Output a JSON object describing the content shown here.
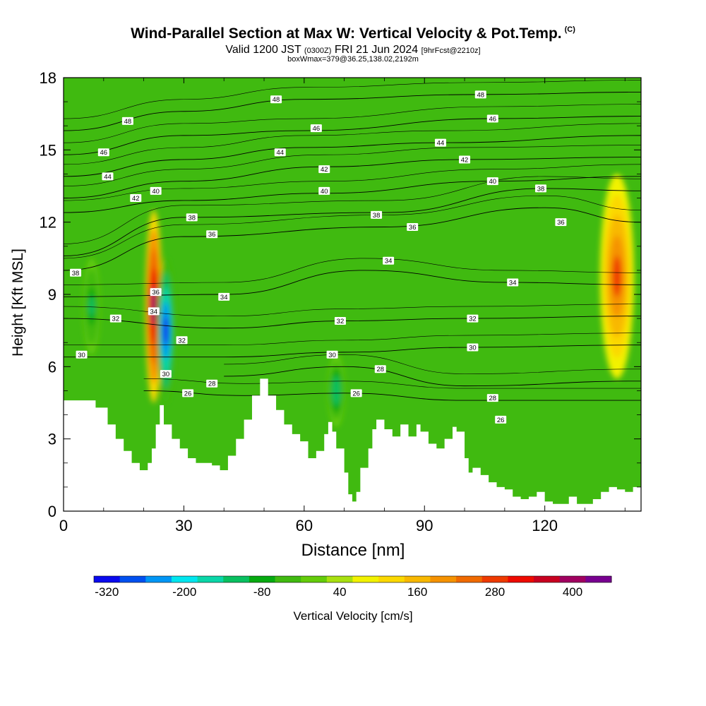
{
  "header": {
    "title": "Wind-Parallel Section at Max W: Vertical Velocity & Pot.Temp.",
    "copyright": "(C)",
    "subtitle_main": "Valid 1200 JST",
    "subtitle_utc": "(0300Z)",
    "subtitle_date": "FRI 21 Jun 2024",
    "subtitle_fcst": "[9hrFcst@2210z]",
    "box_line": "boxWmax=379@36.25,138.02,2192m"
  },
  "chart_data": {
    "type": "heatmap",
    "title": "Wind-Parallel Section at Max W: Vertical Velocity & Pot.Temp.",
    "xlabel": "Distance [nm]",
    "ylabel": "Height [Kft MSL]",
    "xlim": [
      0,
      144
    ],
    "ylim": [
      0,
      18
    ],
    "x_ticks": [
      "0",
      "30",
      "60",
      "90",
      "120"
    ],
    "x_tick_values": [
      0,
      30,
      60,
      90,
      120
    ],
    "y_ticks": [
      "0",
      "3",
      "6",
      "9",
      "12",
      "15",
      "18"
    ],
    "y_tick_values": [
      0,
      3,
      6,
      9,
      12,
      15,
      18
    ],
    "grid": false,
    "colorbar": {
      "label": "Vertical Velocity [cm/s]",
      "tick_labels": [
        "-320",
        "-200",
        "-80",
        "40",
        "160",
        "280",
        "400"
      ],
      "tick_values": [
        -320,
        -200,
        -80,
        40,
        160,
        280,
        400
      ],
      "range": [
        -340,
        460
      ],
      "colors": [
        "#0a0aee",
        "#0050f0",
        "#0096f5",
        "#00e6ef",
        "#0ad6a8",
        "#08c060",
        "#06aa10",
        "#40ba10",
        "#64cc0a",
        "#a8e010",
        "#f2f200",
        "#fbd800",
        "#f8b800",
        "#f59200",
        "#f06a00",
        "#ee3a00",
        "#ee0a00",
        "#c80020",
        "#a00060",
        "#780090"
      ]
    },
    "terrain_profile_kft": [
      [
        0,
        4.6
      ],
      [
        5,
        4.6
      ],
      [
        8,
        4.3
      ],
      [
        11,
        3.6
      ],
      [
        13,
        3.0
      ],
      [
        15,
        2.5
      ],
      [
        17,
        2.0
      ],
      [
        19,
        1.7
      ],
      [
        21,
        2.0
      ],
      [
        22,
        2.6
      ],
      [
        23,
        3.6
      ],
      [
        24,
        4.4
      ],
      [
        25,
        3.6
      ],
      [
        27,
        3.0
      ],
      [
        29,
        2.6
      ],
      [
        31,
        2.2
      ],
      [
        33,
        2.0
      ],
      [
        35,
        2.0
      ],
      [
        37,
        1.9
      ],
      [
        39,
        1.7
      ],
      [
        41,
        2.3
      ],
      [
        43,
        3.0
      ],
      [
        45,
        3.8
      ],
      [
        47,
        4.8
      ],
      [
        49,
        5.5
      ],
      [
        50,
        5.5
      ],
      [
        51,
        4.8
      ],
      [
        53,
        4.2
      ],
      [
        55,
        3.6
      ],
      [
        57,
        3.2
      ],
      [
        59,
        2.9
      ],
      [
        61,
        2.2
      ],
      [
        63,
        2.5
      ],
      [
        65,
        3.2
      ],
      [
        66,
        3.7
      ],
      [
        67,
        3.3
      ],
      [
        68,
        2.6
      ],
      [
        70,
        1.6
      ],
      [
        71,
        0.7
      ],
      [
        72,
        0.4
      ],
      [
        73,
        0.8
      ],
      [
        74,
        1.8
      ],
      [
        76,
        2.6
      ],
      [
        77,
        3.4
      ],
      [
        78,
        3.8
      ],
      [
        80,
        3.4
      ],
      [
        82,
        3.1
      ],
      [
        84,
        3.6
      ],
      [
        86,
        3.1
      ],
      [
        88,
        3.6
      ],
      [
        89,
        3.3
      ],
      [
        91,
        2.8
      ],
      [
        93,
        2.6
      ],
      [
        95,
        3.0
      ],
      [
        97,
        3.5
      ],
      [
        98,
        3.3
      ],
      [
        100,
        2.2
      ],
      [
        101,
        1.6
      ],
      [
        102,
        1.8
      ],
      [
        104,
        1.5
      ],
      [
        106,
        1.2
      ],
      [
        108,
        1.0
      ],
      [
        110,
        0.9
      ],
      [
        112,
        0.6
      ],
      [
        114,
        0.5
      ],
      [
        116,
        0.6
      ],
      [
        118,
        0.8
      ],
      [
        120,
        0.4
      ],
      [
        122,
        0.3
      ],
      [
        124,
        0.3
      ],
      [
        126,
        0.6
      ],
      [
        128,
        0.3
      ],
      [
        130,
        0.3
      ],
      [
        132,
        0.5
      ],
      [
        134,
        0.8
      ],
      [
        136,
        1.0
      ],
      [
        138,
        0.9
      ],
      [
        140,
        0.8
      ],
      [
        142,
        1.0
      ],
      [
        144,
        1.0
      ]
    ],
    "vertical_velocity_features_cms": [
      {
        "x": 22.5,
        "ymin": 4.5,
        "ymax": 12.5,
        "peak": 400
      },
      {
        "x": 25.5,
        "ymin": 4.5,
        "ymax": 10.5,
        "peak": -320
      },
      {
        "x": 138,
        "ymin": 5.5,
        "ymax": 14.0,
        "peak": 260
      },
      {
        "x": 7,
        "ymin": 6.5,
        "ymax": 10.5,
        "peak": -120
      },
      {
        "x": 68,
        "ymin": 3.5,
        "ymax": 6.5,
        "peak": -140
      }
    ],
    "theta_contours": [
      {
        "label": "26",
        "points": [
          [
            20,
            5.0
          ],
          [
            45,
            4.8
          ],
          [
            70,
            4.9
          ],
          [
            100,
            4.6
          ],
          [
            144,
            4.6
          ]
        ]
      },
      {
        "label": "28",
        "points": [
          [
            40,
            5.6
          ],
          [
            70,
            6.0
          ],
          [
            100,
            5.2
          ],
          [
            144,
            5.4
          ]
        ]
      },
      {
        "label": "30",
        "points": [
          [
            0,
            6.4
          ],
          [
            40,
            6.4
          ],
          [
            70,
            6.6
          ],
          [
            100,
            6.8
          ],
          [
            144,
            6.9
          ]
        ]
      },
      {
        "label": "32",
        "points": [
          [
            0,
            8.0
          ],
          [
            40,
            7.6
          ],
          [
            70,
            7.9
          ],
          [
            100,
            8.0
          ],
          [
            144,
            8.1
          ]
        ]
      },
      {
        "label": "34",
        "points": [
          [
            0,
            8.9
          ],
          [
            40,
            9.0
          ],
          [
            75,
            10.0
          ],
          [
            110,
            9.5
          ],
          [
            144,
            9.4
          ]
        ]
      },
      {
        "label": "36",
        "points": [
          [
            0,
            10.0
          ],
          [
            30,
            11.4
          ],
          [
            80,
            11.8
          ],
          [
            120,
            12.6
          ],
          [
            144,
            12.0
          ]
        ]
      },
      {
        "label": "38",
        "points": [
          [
            0,
            10.6
          ],
          [
            30,
            12.2
          ],
          [
            80,
            12.4
          ],
          [
            120,
            13.4
          ],
          [
            144,
            13.3
          ]
        ]
      },
      {
        "label": "40",
        "points": [
          [
            0,
            12.4
          ],
          [
            30,
            12.9
          ],
          [
            65,
            13.2
          ],
          [
            107,
            13.7
          ],
          [
            144,
            13.9
          ]
        ]
      },
      {
        "label": "42",
        "points": [
          [
            0,
            13.0
          ],
          [
            30,
            13.7
          ],
          [
            65,
            14.3
          ],
          [
            100,
            14.6
          ],
          [
            144,
            14.7
          ]
        ]
      },
      {
        "label": "44",
        "points": [
          [
            0,
            13.9
          ],
          [
            30,
            14.6
          ],
          [
            60,
            15.1
          ],
          [
            95,
            15.3
          ],
          [
            144,
            15.6
          ]
        ]
      },
      {
        "label": "46",
        "points": [
          [
            0,
            14.8
          ],
          [
            30,
            15.6
          ],
          [
            60,
            15.8
          ],
          [
            107,
            16.3
          ],
          [
            144,
            16.4
          ]
        ]
      },
      {
        "label": "48",
        "points": [
          [
            0,
            15.8
          ],
          [
            30,
            16.6
          ],
          [
            60,
            17.1
          ],
          [
            104,
            17.3
          ],
          [
            144,
            17.4
          ]
        ]
      }
    ],
    "contour_labels": [
      {
        "text": "48",
        "x": 16,
        "y": 16.2
      },
      {
        "text": "46",
        "x": 10,
        "y": 14.9
      },
      {
        "text": "44",
        "x": 11,
        "y": 13.9
      },
      {
        "text": "42",
        "x": 18,
        "y": 13.0
      },
      {
        "text": "40",
        "x": 23,
        "y": 13.3
      },
      {
        "text": "38",
        "x": 32,
        "y": 12.2
      },
      {
        "text": "36",
        "x": 37,
        "y": 11.5
      },
      {
        "text": "38",
        "x": 3,
        "y": 9.9
      },
      {
        "text": "36",
        "x": 23,
        "y": 9.1
      },
      {
        "text": "34",
        "x": 22.5,
        "y": 8.3
      },
      {
        "text": "32",
        "x": 13,
        "y": 8.0
      },
      {
        "text": "34",
        "x": 40,
        "y": 8.9
      },
      {
        "text": "32",
        "x": 29.5,
        "y": 7.1
      },
      {
        "text": "30",
        "x": 4.5,
        "y": 6.5
      },
      {
        "text": "30",
        "x": 25.5,
        "y": 5.7
      },
      {
        "text": "28",
        "x": 37,
        "y": 5.3
      },
      {
        "text": "26",
        "x": 31,
        "y": 4.9
      },
      {
        "text": "48",
        "x": 53,
        "y": 17.1
      },
      {
        "text": "46",
        "x": 63,
        "y": 15.9
      },
      {
        "text": "44",
        "x": 54,
        "y": 14.9
      },
      {
        "text": "42",
        "x": 65,
        "y": 14.2
      },
      {
        "text": "40",
        "x": 65,
        "y": 13.3
      },
      {
        "text": "38",
        "x": 78,
        "y": 12.3
      },
      {
        "text": "36",
        "x": 87,
        "y": 11.8
      },
      {
        "text": "34",
        "x": 81,
        "y": 10.4
      },
      {
        "text": "32",
        "x": 69,
        "y": 7.9
      },
      {
        "text": "30",
        "x": 67,
        "y": 6.5
      },
      {
        "text": "28",
        "x": 79,
        "y": 5.9
      },
      {
        "text": "26",
        "x": 73,
        "y": 4.9
      },
      {
        "text": "48",
        "x": 104,
        "y": 17.3
      },
      {
        "text": "46",
        "x": 107,
        "y": 16.3
      },
      {
        "text": "44",
        "x": 94,
        "y": 15.3
      },
      {
        "text": "42",
        "x": 100,
        "y": 14.6
      },
      {
        "text": "40",
        "x": 107,
        "y": 13.7
      },
      {
        "text": "38",
        "x": 119,
        "y": 13.4
      },
      {
        "text": "36",
        "x": 124,
        "y": 12.0
      },
      {
        "text": "34",
        "x": 112,
        "y": 9.5
      },
      {
        "text": "32",
        "x": 102,
        "y": 8.0
      },
      {
        "text": "30",
        "x": 102,
        "y": 6.8
      },
      {
        "text": "28",
        "x": 107,
        "y": 4.7
      },
      {
        "text": "26",
        "x": 109,
        "y": 3.8
      }
    ]
  }
}
